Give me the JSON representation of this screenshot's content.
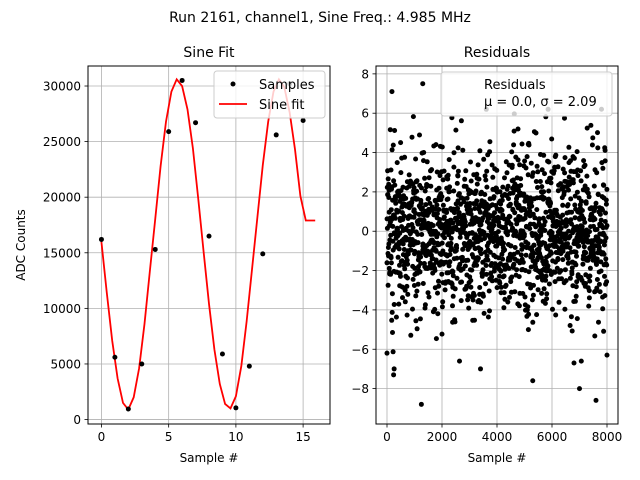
{
  "suptitle": "Run 2161, channel1, Sine Freq.: 4.985 MHz",
  "chart_data": [
    {
      "type": "line",
      "title": "Sine Fit",
      "xlabel": "Sample #",
      "ylabel": "ADC Counts",
      "xlim": [
        -1.0,
        17.0
      ],
      "ylim": [
        -400,
        31800
      ],
      "xticks": [
        0,
        5,
        10,
        15
      ],
      "yticks": [
        0,
        5000,
        10000,
        15000,
        20000,
        25000,
        30000
      ],
      "grid": true,
      "legend": "top-right",
      "series": [
        {
          "name": "Samples",
          "style": "points",
          "color": "#000000",
          "x": [
            0,
            1,
            2,
            3,
            4,
            5,
            6,
            7,
            8,
            9,
            10,
            11,
            12,
            13,
            14,
            15
          ],
          "y": [
            16200,
            5600,
            950,
            5000,
            15300,
            25900,
            30500,
            26700,
            16500,
            5900,
            1050,
            4800,
            14900,
            25600,
            30200,
            26900
          ]
        },
        {
          "name": "Sine fit",
          "style": "line",
          "color": "#ff0000",
          "x": [
            0.0,
            0.4,
            0.8,
            1.2,
            1.6,
            2.0,
            2.4,
            2.8,
            3.2,
            3.6,
            4.0,
            4.4,
            4.8,
            5.2,
            5.6,
            6.0,
            6.4,
            6.8,
            7.2,
            7.6,
            8.0,
            8.4,
            8.8,
            9.2,
            9.6,
            10.0,
            10.4,
            10.8,
            11.2,
            11.6,
            12.0,
            12.4,
            12.8,
            13.2,
            13.6,
            14.0,
            14.4,
            14.8,
            15.2,
            15.6,
            15.9
          ],
          "y": [
            16000,
            11400,
            7100,
            3700,
            1500,
            900,
            2000,
            4600,
            8600,
            13300,
            18000,
            22800,
            26800,
            29500,
            30600,
            30000,
            27900,
            24400,
            19900,
            15100,
            10400,
            6300,
            3200,
            1400,
            1000,
            2100,
            4800,
            8800,
            13500,
            18200,
            22900,
            26800,
            29500,
            30600,
            29900,
            27600,
            24300,
            20100,
            17900,
            17900,
            17900
          ]
        }
      ]
    },
    {
      "type": "scatter",
      "title": "Residuals",
      "xlabel": "Sample #",
      "ylabel": "",
      "xlim": [
        -400,
        8400
      ],
      "ylim": [
        -9.8,
        8.4
      ],
      "xticks": [
        0,
        2000,
        4000,
        6000,
        8000
      ],
      "yticks": [
        -8,
        -6,
        -4,
        -2,
        0,
        2,
        4,
        6,
        8
      ],
      "grid": true,
      "legend": "top-right",
      "legend_lines": [
        "Residuals",
        "μ = 0.0, σ = 2.09"
      ],
      "series": [
        {
          "name": "Residuals",
          "color": "#000000",
          "n_points": 8000,
          "mean": 0.0,
          "std": 2.09,
          "outliers": [
            {
              "x": 0,
              "y": -6.2
            },
            {
              "x": 180,
              "y": 7.1
            },
            {
              "x": 240,
              "y": -7.3
            },
            {
              "x": 260,
              "y": -7.0
            },
            {
              "x": 1250,
              "y": -8.8
            },
            {
              "x": 1300,
              "y": 7.5
            },
            {
              "x": 3400,
              "y": -7.0
            },
            {
              "x": 5300,
              "y": -7.6
            },
            {
              "x": 6800,
              "y": -6.7
            },
            {
              "x": 7000,
              "y": -8.0
            },
            {
              "x": 7600,
              "y": -8.6
            },
            {
              "x": 7800,
              "y": 6.2
            },
            {
              "x": 8000,
              "y": -6.3
            }
          ]
        }
      ]
    }
  ]
}
